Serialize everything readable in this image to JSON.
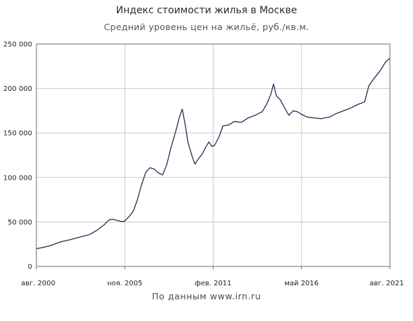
{
  "chart_data": {
    "type": "line",
    "title": "Индекс стоимости жилья в Москве",
    "subtitle": "Средний уровень цен на жильё, руб./кв.м.",
    "source": "По данным www.irn.ru",
    "xlabel": "",
    "ylabel": "",
    "ylim": [
      0,
      250000
    ],
    "xlim": [
      "2000-08",
      "2021-08"
    ],
    "grid": true,
    "y_tick_labels": [
      "0",
      "50 000",
      "100 000",
      "150 000",
      "200 000",
      "250 000"
    ],
    "y_tick_values": [
      0,
      50000,
      100000,
      150000,
      200000,
      250000
    ],
    "x_tick_labels": [
      "авг. 2000",
      "ноя. 2005",
      "фев. 2011",
      "май 2016",
      "авг. 2021"
    ],
    "x_tick_values": [
      "2000-08",
      "2005-11",
      "2011-02",
      "2016-05",
      "2021-08"
    ],
    "line_color": "#2a2a55",
    "grid_color": "#c8c8c8",
    "series": [
      {
        "values": [
          [
            "2000-08",
            20000
          ],
          [
            "2001-01",
            21500
          ],
          [
            "2001-06",
            23500
          ],
          [
            "2002-01",
            27500
          ],
          [
            "2002-08",
            30000
          ],
          [
            "2003-03",
            33000
          ],
          [
            "2003-10",
            36000
          ],
          [
            "2004-03",
            40500
          ],
          [
            "2004-08",
            46500
          ],
          [
            "2004-12",
            52500
          ],
          [
            "2005-03",
            53000
          ],
          [
            "2005-06",
            51500
          ],
          [
            "2005-09",
            50500
          ],
          [
            "2005-11",
            51000
          ],
          [
            "2006-02",
            56000
          ],
          [
            "2006-05",
            62000
          ],
          [
            "2006-08",
            75000
          ],
          [
            "2006-11",
            92000
          ],
          [
            "2007-02",
            106000
          ],
          [
            "2007-05",
            111000
          ],
          [
            "2007-08",
            109500
          ],
          [
            "2007-11",
            105000
          ],
          [
            "2008-02",
            103000
          ],
          [
            "2008-05",
            115000
          ],
          [
            "2008-08",
            134000
          ],
          [
            "2008-11",
            150000
          ],
          [
            "2009-02",
            168000
          ],
          [
            "2009-04",
            177000
          ],
          [
            "2009-06",
            160000
          ],
          [
            "2009-08",
            140000
          ],
          [
            "2009-11",
            124000
          ],
          [
            "2010-01",
            115000
          ],
          [
            "2010-03",
            120000
          ],
          [
            "2010-06",
            126000
          ],
          [
            "2010-09",
            135000
          ],
          [
            "2010-11",
            140000
          ],
          [
            "2011-01",
            135000
          ],
          [
            "2011-03",
            136000
          ],
          [
            "2011-06",
            145000
          ],
          [
            "2011-09",
            158000
          ],
          [
            "2012-01",
            159000
          ],
          [
            "2012-05",
            163000
          ],
          [
            "2012-10",
            162000
          ],
          [
            "2013-03",
            167000
          ],
          [
            "2013-08",
            170000
          ],
          [
            "2014-01",
            174000
          ],
          [
            "2014-04",
            182000
          ],
          [
            "2014-07",
            193000
          ],
          [
            "2014-09",
            205000
          ],
          [
            "2014-11",
            192000
          ],
          [
            "2015-02",
            187000
          ],
          [
            "2015-05",
            178000
          ],
          [
            "2015-08",
            170000
          ],
          [
            "2015-11",
            175000
          ],
          [
            "2016-02",
            174000
          ],
          [
            "2016-05",
            171000
          ],
          [
            "2016-09",
            168000
          ],
          [
            "2017-02",
            167000
          ],
          [
            "2017-07",
            166000
          ],
          [
            "2018-01",
            168000
          ],
          [
            "2018-06",
            172000
          ],
          [
            "2018-11",
            175000
          ],
          [
            "2019-04",
            178000
          ],
          [
            "2019-09",
            182000
          ],
          [
            "2020-02",
            185000
          ],
          [
            "2020-05",
            203000
          ],
          [
            "2020-09",
            212000
          ],
          [
            "2021-01",
            220000
          ],
          [
            "2021-05",
            230000
          ],
          [
            "2021-08",
            234000
          ]
        ]
      }
    ]
  }
}
